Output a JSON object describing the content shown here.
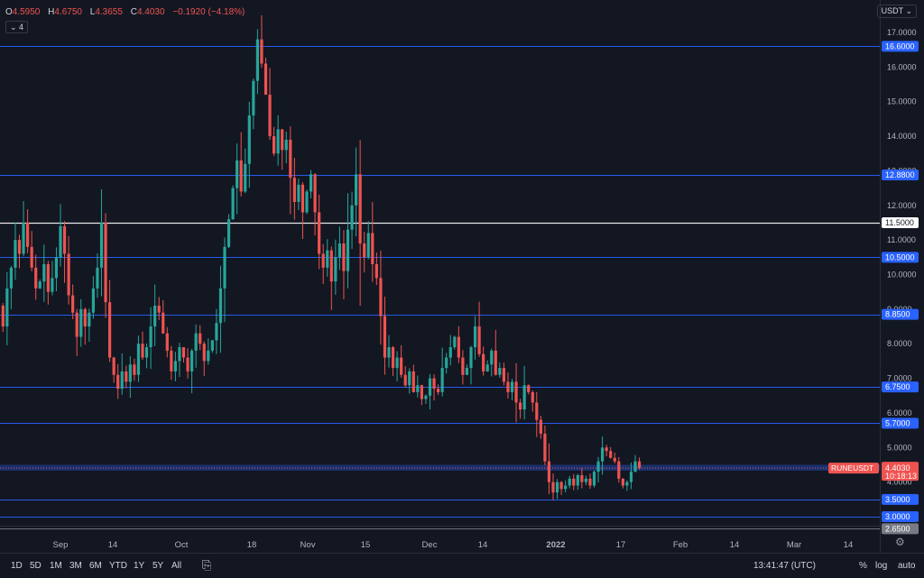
{
  "header": {
    "open_label": "O",
    "open": "4.5950",
    "high_label": "H",
    "high": "4.6750",
    "low_label": "L",
    "low": "4.3655",
    "close_label": "C",
    "close": "4.4030",
    "change": "−0.1920 (−4.18%)",
    "indicator_toggle": "4",
    "currency": "USDT"
  },
  "chart_data": {
    "type": "candlestick",
    "symbol": "RUNEUSDT",
    "last_price": "4.4030",
    "countdown": "10:18:13",
    "ylim": [
      2.4,
      17.7
    ],
    "y_ticks": [
      "2.6500",
      "3.0000",
      "3.5000",
      "4.0000",
      "5.0000",
      "6.0000",
      "7.0000",
      "8.0000",
      "9.0000",
      "10.0000",
      "11.0000",
      "12.0000",
      "13.0000",
      "14.0000",
      "15.0000",
      "16.0000",
      "17.0000"
    ],
    "x_ticks": [
      {
        "label": "Sep",
        "day": 0
      },
      {
        "label": "14",
        "day": 13
      },
      {
        "label": "Oct",
        "day": 30
      },
      {
        "label": "18",
        "day": 47
      },
      {
        "label": "Nov",
        "day": 61
      },
      {
        "label": "15",
        "day": 75
      },
      {
        "label": "Dec",
        "day": 91
      },
      {
        "label": "14",
        "day": 104
      },
      {
        "label": "2022",
        "day": 122
      },
      {
        "label": "17",
        "day": 138
      },
      {
        "label": "Feb",
        "day": 153
      },
      {
        "label": "14",
        "day": 166
      },
      {
        "label": "Mar",
        "day": 181
      },
      {
        "label": "14",
        "day": 194
      }
    ],
    "levels": [
      {
        "value": 16.6,
        "label": "16.6000",
        "color": "#2962ff"
      },
      {
        "value": 12.88,
        "label": "12.8800",
        "color": "#2962ff"
      },
      {
        "value": 11.5,
        "label": "11.5000",
        "color": "#ffffff"
      },
      {
        "value": 10.5,
        "label": "10.5000",
        "color": "#2962ff"
      },
      {
        "value": 8.85,
        "label": "8.8500",
        "color": "#2962ff"
      },
      {
        "value": 6.75,
        "label": "6.7500",
        "color": "#2962ff"
      },
      {
        "value": 5.7,
        "label": "5.7000",
        "color": "#2962ff"
      },
      {
        "value": 3.5,
        "label": "3.5000",
        "color": "#2962ff"
      },
      {
        "value": 3.0,
        "label": "3.0000",
        "color": "#2962ff"
      },
      {
        "value": 2.65,
        "label": "2.6500",
        "color": "#787b86"
      }
    ],
    "closes": [
      9.1,
      8.5,
      9.6,
      10.2,
      11.0,
      10.6,
      11.5,
      10.8,
      10.2,
      9.6,
      9.8,
      10.3,
      9.5,
      9.9,
      10.5,
      11.4,
      10.6,
      9.4,
      8.9,
      8.2,
      9.0,
      8.5,
      8.9,
      9.6,
      10.2,
      11.5,
      9.2,
      7.6,
      7.1,
      6.7,
      7.2,
      6.9,
      7.4,
      7.1,
      8.0,
      7.6,
      7.9,
      8.5,
      9.1,
      8.9,
      8.3,
      7.8,
      7.2,
      7.5,
      7.9,
      7.6,
      7.2,
      7.8,
      8.3,
      8.0,
      7.5,
      7.8,
      8.1,
      8.6,
      9.6,
      10.8,
      11.6,
      12.5,
      13.3,
      12.4,
      13.2,
      14.6,
      15.6,
      16.8,
      16.1,
      15.2,
      14.0,
      13.5,
      14.2,
      13.6,
      13.9,
      12.8,
      12.1,
      12.6,
      11.8,
      12.4,
      12.9,
      11.8,
      10.6,
      10.2,
      10.7,
      9.8,
      10.5,
      10.9,
      10.1,
      11.3,
      12.0,
      12.9,
      10.9,
      10.5,
      11.2,
      10.3,
      9.9,
      8.8,
      7.6,
      7.9,
      7.3,
      7.6,
      7.1,
      6.8,
      7.2,
      6.6,
      6.8,
      6.4,
      6.5,
      7.0,
      6.7,
      6.6,
      7.3,
      7.6,
      7.9,
      8.2,
      7.6,
      7.1,
      7.3,
      7.9,
      8.5,
      7.7,
      7.2,
      7.4,
      7.8,
      7.1,
      7.3,
      6.9,
      6.6,
      6.9,
      6.3,
      6.1,
      6.8,
      6.6,
      6.3,
      5.8,
      5.4,
      4.6,
      4.0,
      3.7,
      4.0,
      3.8,
      3.9,
      4.1,
      3.9,
      4.2,
      4.0,
      4.1,
      3.9,
      4.3,
      4.6,
      5.0,
      4.9,
      4.7,
      4.6,
      4.1,
      3.9,
      4.0,
      4.3,
      4.6,
      4.403
    ],
    "colors": {
      "up": "#26a69a",
      "down": "#ef5350"
    }
  },
  "bottom": {
    "ranges": [
      "1D",
      "5D",
      "1M",
      "3M",
      "6M",
      "YTD",
      "1Y",
      "5Y",
      "All"
    ],
    "time": "13:41:47 (UTC)",
    "percent": "%",
    "log": "log",
    "auto": "auto"
  }
}
